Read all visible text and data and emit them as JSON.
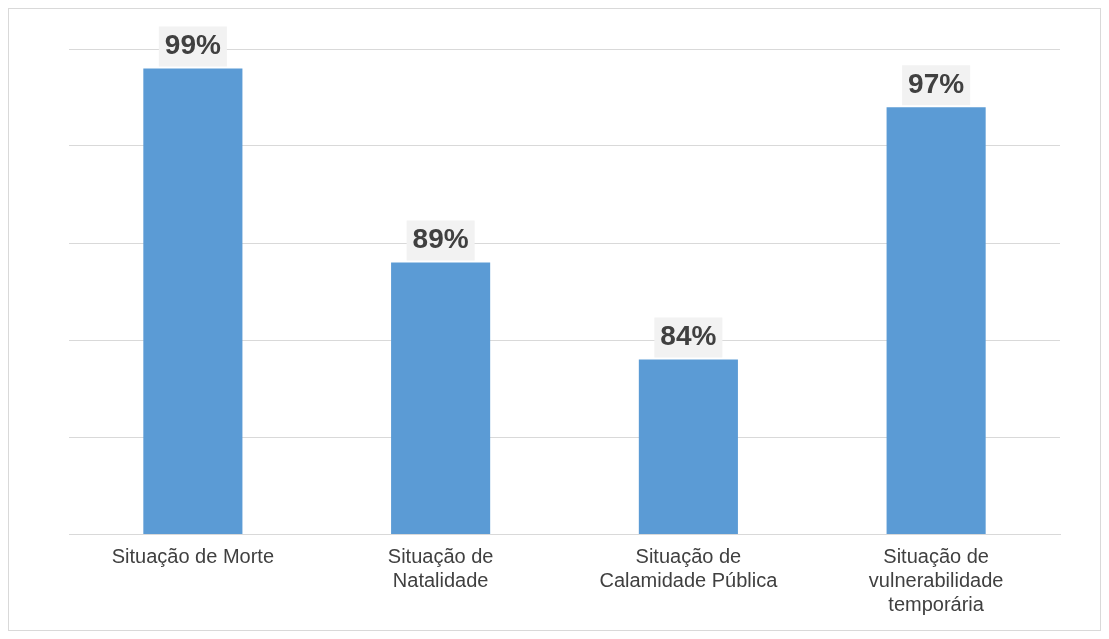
{
  "chart_data": {
    "type": "bar",
    "categories": [
      "Situação de Morte",
      "Situação de Natalidade",
      "Situação de Calamidade Pública",
      "Situação de vulnerabilidade temporária"
    ],
    "values": [
      99,
      89,
      84,
      97
    ],
    "color": "#5b9bd5",
    "value_labels": [
      "99%",
      "89%",
      "84%",
      "97%"
    ],
    "ylim": [
      75,
      100
    ],
    "yticks": [
      {
        "value": 75,
        "label": null
      },
      {
        "value": 80,
        "label": null
      },
      {
        "value": 85,
        "label": null
      },
      {
        "value": 90,
        "label": null
      },
      {
        "value": 95,
        "label": null
      },
      {
        "value": 100,
        "label": null
      }
    ],
    "grid": "y",
    "tick_labels": "x"
  }
}
